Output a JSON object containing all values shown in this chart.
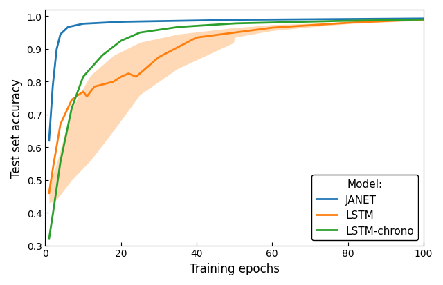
{
  "title": "",
  "xlabel": "Training epochs",
  "ylabel": "Test set accuracy",
  "xlim": [
    0,
    100
  ],
  "ylim": [
    0.3,
    1.02
  ],
  "yticks": [
    0.3,
    0.4,
    0.5,
    0.6,
    0.7,
    0.8,
    0.9,
    1.0
  ],
  "xticks": [
    0,
    20,
    40,
    60,
    80,
    100
  ],
  "janet_color": "#1f77b4",
  "lstm_color": "#ff7f0e",
  "lstm_chrono_color": "#2ca02c",
  "lstm_fill_color": "#ffbb78",
  "legend_title": "Model:",
  "legend_labels": [
    "JANET",
    "LSTM",
    "LSTM-chrono"
  ],
  "figsize": [
    6.4,
    4.14
  ],
  "dpi": 100
}
